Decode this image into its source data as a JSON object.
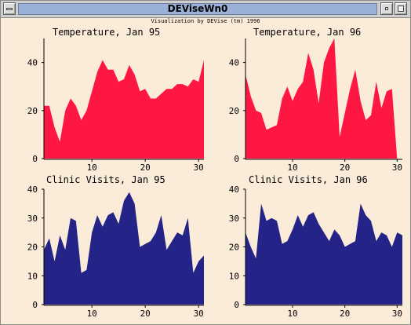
{
  "window": {
    "title": "DEViseWn0",
    "caption": "Visualization by DEVise (tm) 1996"
  },
  "colors": {
    "temperature_fill": "#ff1744",
    "visits_fill": "#242488",
    "background": "#fbebd9",
    "titlebar": "#9bb0d8"
  },
  "chart_data": [
    {
      "type": "area",
      "title": "Temperature, Jan 95",
      "x": [
        1,
        2,
        3,
        4,
        5,
        6,
        7,
        8,
        9,
        10,
        11,
        12,
        13,
        14,
        15,
        16,
        17,
        18,
        19,
        20,
        21,
        22,
        23,
        24,
        25,
        26,
        27,
        28,
        29,
        30,
        31
      ],
      "values": [
        22,
        22,
        13,
        7,
        20,
        25,
        22,
        16,
        20,
        28,
        36,
        41,
        37,
        37,
        32,
        33,
        39,
        35,
        28,
        29,
        25,
        25,
        27,
        29,
        29,
        31,
        31,
        30,
        33,
        32,
        41
      ],
      "xlim": [
        1,
        31
      ],
      "ylim": [
        0,
        50
      ],
      "xticks": [
        10,
        20,
        30
      ],
      "yticks": [
        0,
        20,
        40
      ]
    },
    {
      "type": "area",
      "title": "Temperature, Jan 96",
      "x": [
        1,
        2,
        3,
        4,
        5,
        6,
        7,
        8,
        9,
        10,
        11,
        12,
        13,
        14,
        15,
        16,
        17,
        18,
        19,
        20,
        21,
        22,
        23,
        24,
        25,
        26,
        27,
        28,
        29,
        30,
        31
      ],
      "values": [
        35,
        26,
        20,
        19,
        12,
        13,
        14,
        25,
        30,
        24,
        29,
        32,
        44,
        37,
        23,
        40,
        46,
        50,
        9,
        19,
        29,
        37,
        24,
        16,
        18,
        32,
        21,
        28,
        29,
        0,
        0
      ],
      "xlim": [
        1,
        31
      ],
      "ylim": [
        0,
        50
      ],
      "xticks": [
        10,
        20,
        30
      ],
      "yticks": [
        0,
        20,
        40
      ]
    },
    {
      "type": "area",
      "title": "Clinic Visits, Jan 95",
      "x": [
        1,
        2,
        3,
        4,
        5,
        6,
        7,
        8,
        9,
        10,
        11,
        12,
        13,
        14,
        15,
        16,
        17,
        18,
        19,
        20,
        21,
        22,
        23,
        24,
        25,
        26,
        27,
        28,
        29,
        30,
        31
      ],
      "values": [
        19,
        23,
        15,
        24,
        19,
        30,
        29,
        11,
        12,
        25,
        31,
        27,
        31,
        32,
        28,
        36,
        39,
        35,
        20,
        21,
        22,
        25,
        31,
        19,
        22,
        25,
        24,
        30,
        11,
        15,
        17
      ],
      "xlim": [
        1,
        31
      ],
      "ylim": [
        0,
        40
      ],
      "xticks": [
        10,
        20,
        30
      ],
      "yticks": [
        0,
        10,
        20,
        30,
        40
      ]
    },
    {
      "type": "area",
      "title": "Clinic Visits, Jan 96",
      "x": [
        1,
        2,
        3,
        4,
        5,
        6,
        7,
        8,
        9,
        10,
        11,
        12,
        13,
        14,
        15,
        16,
        17,
        18,
        19,
        20,
        21,
        22,
        23,
        24,
        25,
        26,
        27,
        28,
        29,
        30,
        31
      ],
      "values": [
        25,
        20,
        16,
        35,
        29,
        30,
        29,
        21,
        22,
        26,
        31,
        27,
        31,
        32,
        28,
        25,
        22,
        26,
        24,
        20,
        21,
        22,
        35,
        31,
        29,
        22,
        25,
        24,
        20,
        25,
        24
      ],
      "xlim": [
        1,
        31
      ],
      "ylim": [
        0,
        40
      ],
      "xticks": [
        10,
        20,
        30
      ],
      "yticks": [
        0,
        10,
        20,
        30,
        40
      ]
    }
  ]
}
